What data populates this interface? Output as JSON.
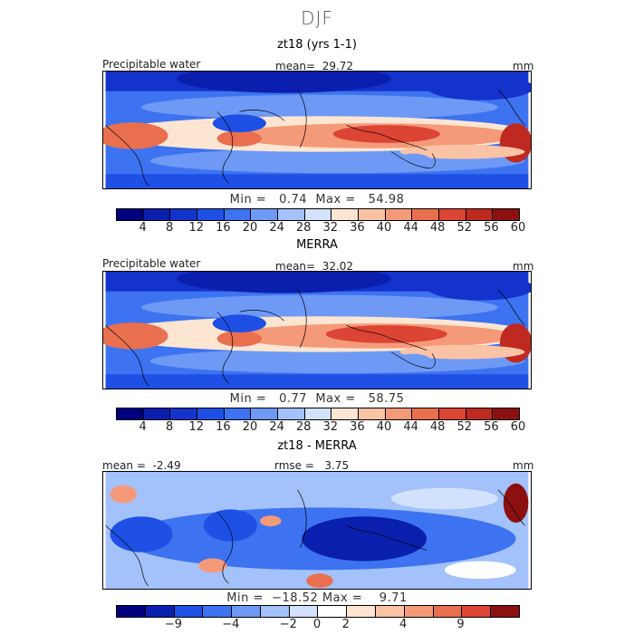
{
  "figure": {
    "title": "DJF"
  },
  "colors": {
    "precip_scale": [
      "#00007f",
      "#0b1fae",
      "#1432cc",
      "#1e50e6",
      "#3d73f0",
      "#6e9af5",
      "#a3c1fa",
      "#d2e2fc",
      "#fce6d2",
      "#fbc3a5",
      "#f59a78",
      "#ea6f4f",
      "#dc4434",
      "#be2a20",
      "#8c1010"
    ],
    "diff_scale": [
      "#00007f",
      "#0b1fae",
      "#1e50e6",
      "#3d73f0",
      "#6e9af5",
      "#a3c1fa",
      "#d2e2fc",
      "#ffffff",
      "#fce6d2",
      "#fbc3a5",
      "#f59a78",
      "#ea6f4f",
      "#dc4434",
      "#8c1010"
    ]
  },
  "panels": [
    {
      "title": "zt18 (yrs 1-1)",
      "left_label": "Precipitable water",
      "center_label": "mean=  29.72",
      "right_label": "mm",
      "min_label": "Min =",
      "min_value": "0.74",
      "max_label": "Max =",
      "max_value": "54.98",
      "ticks": [
        "4",
        "8",
        "12",
        "16",
        "20",
        "24",
        "28",
        "32",
        "36",
        "40",
        "44",
        "48",
        "52",
        "56",
        "60"
      ]
    },
    {
      "title": "MERRA",
      "left_label": "Precipitable water",
      "center_label": "mean=  32.02",
      "right_label": "mm",
      "min_label": "Min =",
      "min_value": "0.77",
      "max_label": "Max =",
      "max_value": "58.75",
      "ticks": [
        "4",
        "8",
        "12",
        "16",
        "20",
        "24",
        "28",
        "32",
        "36",
        "40",
        "44",
        "48",
        "52",
        "56",
        "60"
      ]
    },
    {
      "title": "zt18 - MERRA",
      "left_label": "mean =  -2.49",
      "center_label": "rmse =   3.75",
      "right_label": "mm",
      "min_label": "Min =",
      "min_value": "−18.52",
      "max_label": "Max =",
      "max_value": "9.71",
      "ticks": [
        "−9",
        "−4",
        "−2",
        "0",
        "2",
        "4",
        "9"
      ]
    }
  ],
  "chart_data": [
    {
      "type": "heatmap",
      "title": "zt18 (yrs 1-1)",
      "variable": "Precipitable water",
      "units": "mm",
      "mean": 29.72,
      "min": 0.74,
      "max": 54.98,
      "colorbar_levels": [
        4,
        8,
        12,
        16,
        20,
        24,
        28,
        32,
        36,
        40,
        44,
        48,
        52,
        56,
        60
      ]
    },
    {
      "type": "heatmap",
      "title": "MERRA",
      "variable": "Precipitable water",
      "units": "mm",
      "mean": 32.02,
      "min": 0.77,
      "max": 58.75,
      "colorbar_levels": [
        4,
        8,
        12,
        16,
        20,
        24,
        28,
        32,
        36,
        40,
        44,
        48,
        52,
        56,
        60
      ]
    },
    {
      "type": "heatmap",
      "title": "zt18 - MERRA",
      "units": "mm",
      "mean": -2.49,
      "rmse": 3.75,
      "min": -18.52,
      "max": 9.71,
      "colorbar_ticks": [
        -9,
        -4,
        -2,
        0,
        2,
        4,
        9
      ]
    }
  ]
}
